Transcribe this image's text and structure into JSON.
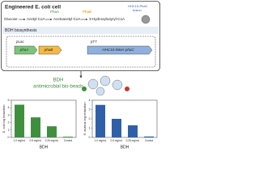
{
  "diagram": {
    "title": "Engineered E. coli cell",
    "enzymes": [
      "PhaA",
      "PhaB",
      "HHC10-PhaC",
      "fusion"
    ],
    "pathway": [
      "Glucose",
      "Acetyl-CoA",
      "Acetoacetyl-CoA",
      "3-Hydroxybutyryl-CoA"
    ],
    "section": "BDH biosynthesis",
    "promoters": [
      "pLac",
      "pT7"
    ],
    "genes": [
      "phaA",
      "phaB",
      "HHC10-linker-phaC"
    ],
    "product": [
      "BDH",
      "antimicrobial bio-beads"
    ]
  },
  "chart_data": [
    {
      "type": "bar",
      "ylabel": "E. coli log reduction",
      "xlabel": "BDH",
      "categories": [
        "1.0 mg/mL",
        "0.5 mg/mL",
        "0.25 mg/mL",
        "Control"
      ],
      "values": [
        4.4,
        2.7,
        1.5,
        0.1
      ],
      "color": "#3f8f3f",
      "ylim": [
        0,
        5
      ],
      "yticks": [
        0,
        1,
        2,
        3,
        4,
        5
      ]
    },
    {
      "type": "bar",
      "ylabel": "S. aureus log reduction",
      "xlabel": "BDH",
      "categories": [
        "1.0 mg/mL",
        "0.5 mg/mL",
        "0.25 mg/mL",
        "Control"
      ],
      "values": [
        3.5,
        2.0,
        1.3,
        0.1
      ],
      "color": "#2f5fa8",
      "ylim": [
        0,
        4
      ],
      "yticks": [
        0,
        1,
        2,
        3,
        4
      ]
    }
  ]
}
